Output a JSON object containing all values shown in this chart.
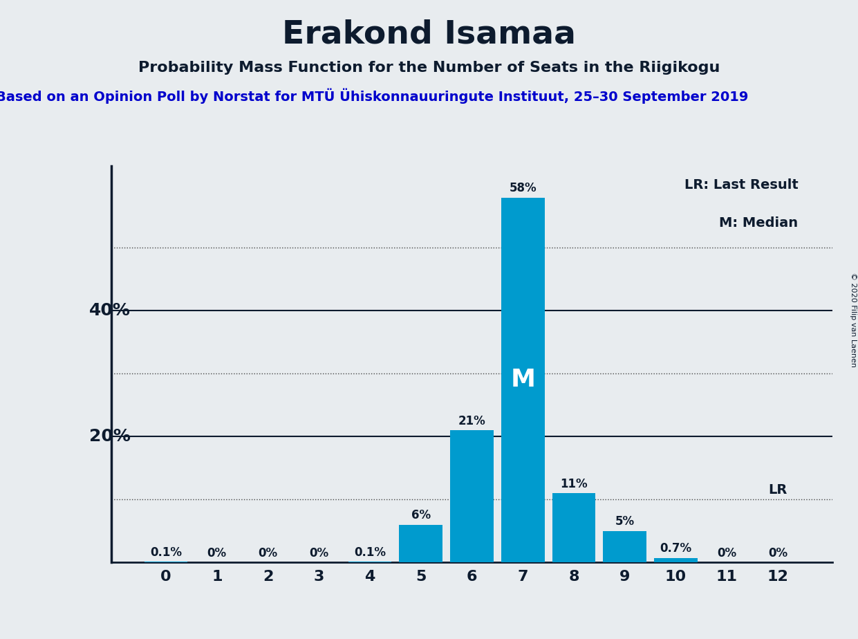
{
  "title": "Erakond Isamaa",
  "subtitle": "Probability Mass Function for the Number of Seats in the Riigikogu",
  "source": "Based on an Opinion Poll by Norstat for MTÜ Ühiskonnauuringute Instituut, 25–30 September 2019",
  "copyright": "© 2020 Filip van Laenen",
  "categories": [
    0,
    1,
    2,
    3,
    4,
    5,
    6,
    7,
    8,
    9,
    10,
    11,
    12
  ],
  "values": [
    0.1,
    0.0,
    0.0,
    0.0,
    0.1,
    6.0,
    21.0,
    58.0,
    11.0,
    5.0,
    0.7,
    0.0,
    0.0
  ],
  "labels": [
    "0.1%",
    "0%",
    "0%",
    "0%",
    "0.1%",
    "6%",
    "21%",
    "58%",
    "11%",
    "5%",
    "0.7%",
    "0%",
    "0%"
  ],
  "bar_color": "#009bce",
  "median_seat": 7,
  "lr_seat": 12,
  "background_color": "#e8ecef",
  "title_color": "#0d1b2e",
  "source_color": "#0000cc",
  "legend_lr": "LR: Last Result",
  "legend_m": "M: Median",
  "ylim": [
    0,
    63
  ],
  "solid_lines": [
    20,
    40
  ],
  "dotted_lines": [
    10,
    30,
    50
  ],
  "ylabel_labels": [
    "20%",
    "40%"
  ],
  "left_border_color": "#000000"
}
